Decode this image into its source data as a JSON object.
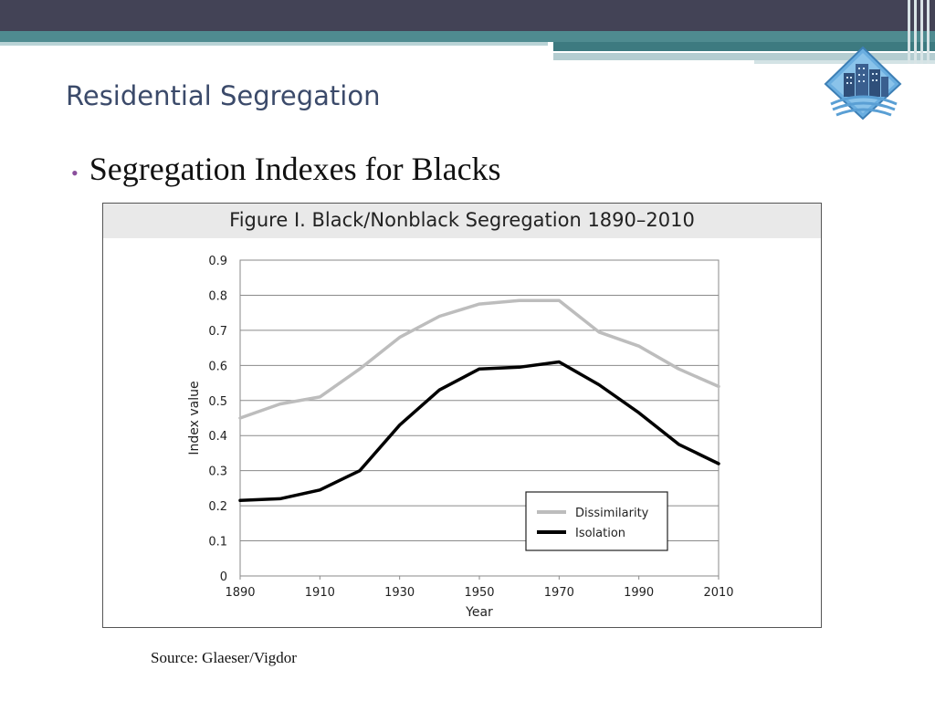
{
  "slide": {
    "title": "Residential Segregation",
    "bullet": "Segregation Indexes for Blacks",
    "source": "Source:  Glaeser/Vigdor"
  },
  "logo": {
    "icon": "city-buildings-icon",
    "colors": {
      "diamond": "#5a9fd4",
      "building": "#2f4f7a"
    }
  },
  "theme": {
    "topbar": "#434356",
    "band": "#4f8b90",
    "title_color": "#3b4a6a",
    "bullet_color": "#8a4f9c"
  },
  "chart_data": {
    "type": "line",
    "title": "Figure I. Black/Nonblack Segregation 1890–2010",
    "xlabel": "Year",
    "ylabel": "Index value",
    "x": [
      1890,
      1900,
      1910,
      1920,
      1930,
      1940,
      1950,
      1960,
      1970,
      1980,
      1990,
      2000,
      2010
    ],
    "xticks": [
      1890,
      1910,
      1930,
      1950,
      1970,
      1990,
      2010
    ],
    "yticks": [
      0,
      0.1,
      0.2,
      0.3,
      0.4,
      0.5,
      0.6,
      0.7,
      0.8,
      0.9
    ],
    "xlim": [
      1890,
      2010
    ],
    "ylim": [
      0,
      0.9
    ],
    "grid": "horizontal",
    "legend": "bottom-right",
    "series": [
      {
        "name": "Dissimilarity",
        "color": "#bdbdbd",
        "values": [
          0.45,
          0.49,
          0.51,
          0.59,
          0.68,
          0.74,
          0.775,
          0.785,
          0.785,
          0.695,
          0.655,
          0.59,
          0.54
        ]
      },
      {
        "name": "Isolation",
        "color": "#000000",
        "values": [
          0.215,
          0.22,
          0.245,
          0.3,
          0.43,
          0.53,
          0.59,
          0.595,
          0.61,
          0.545,
          0.465,
          0.375,
          0.32
        ]
      }
    ]
  }
}
